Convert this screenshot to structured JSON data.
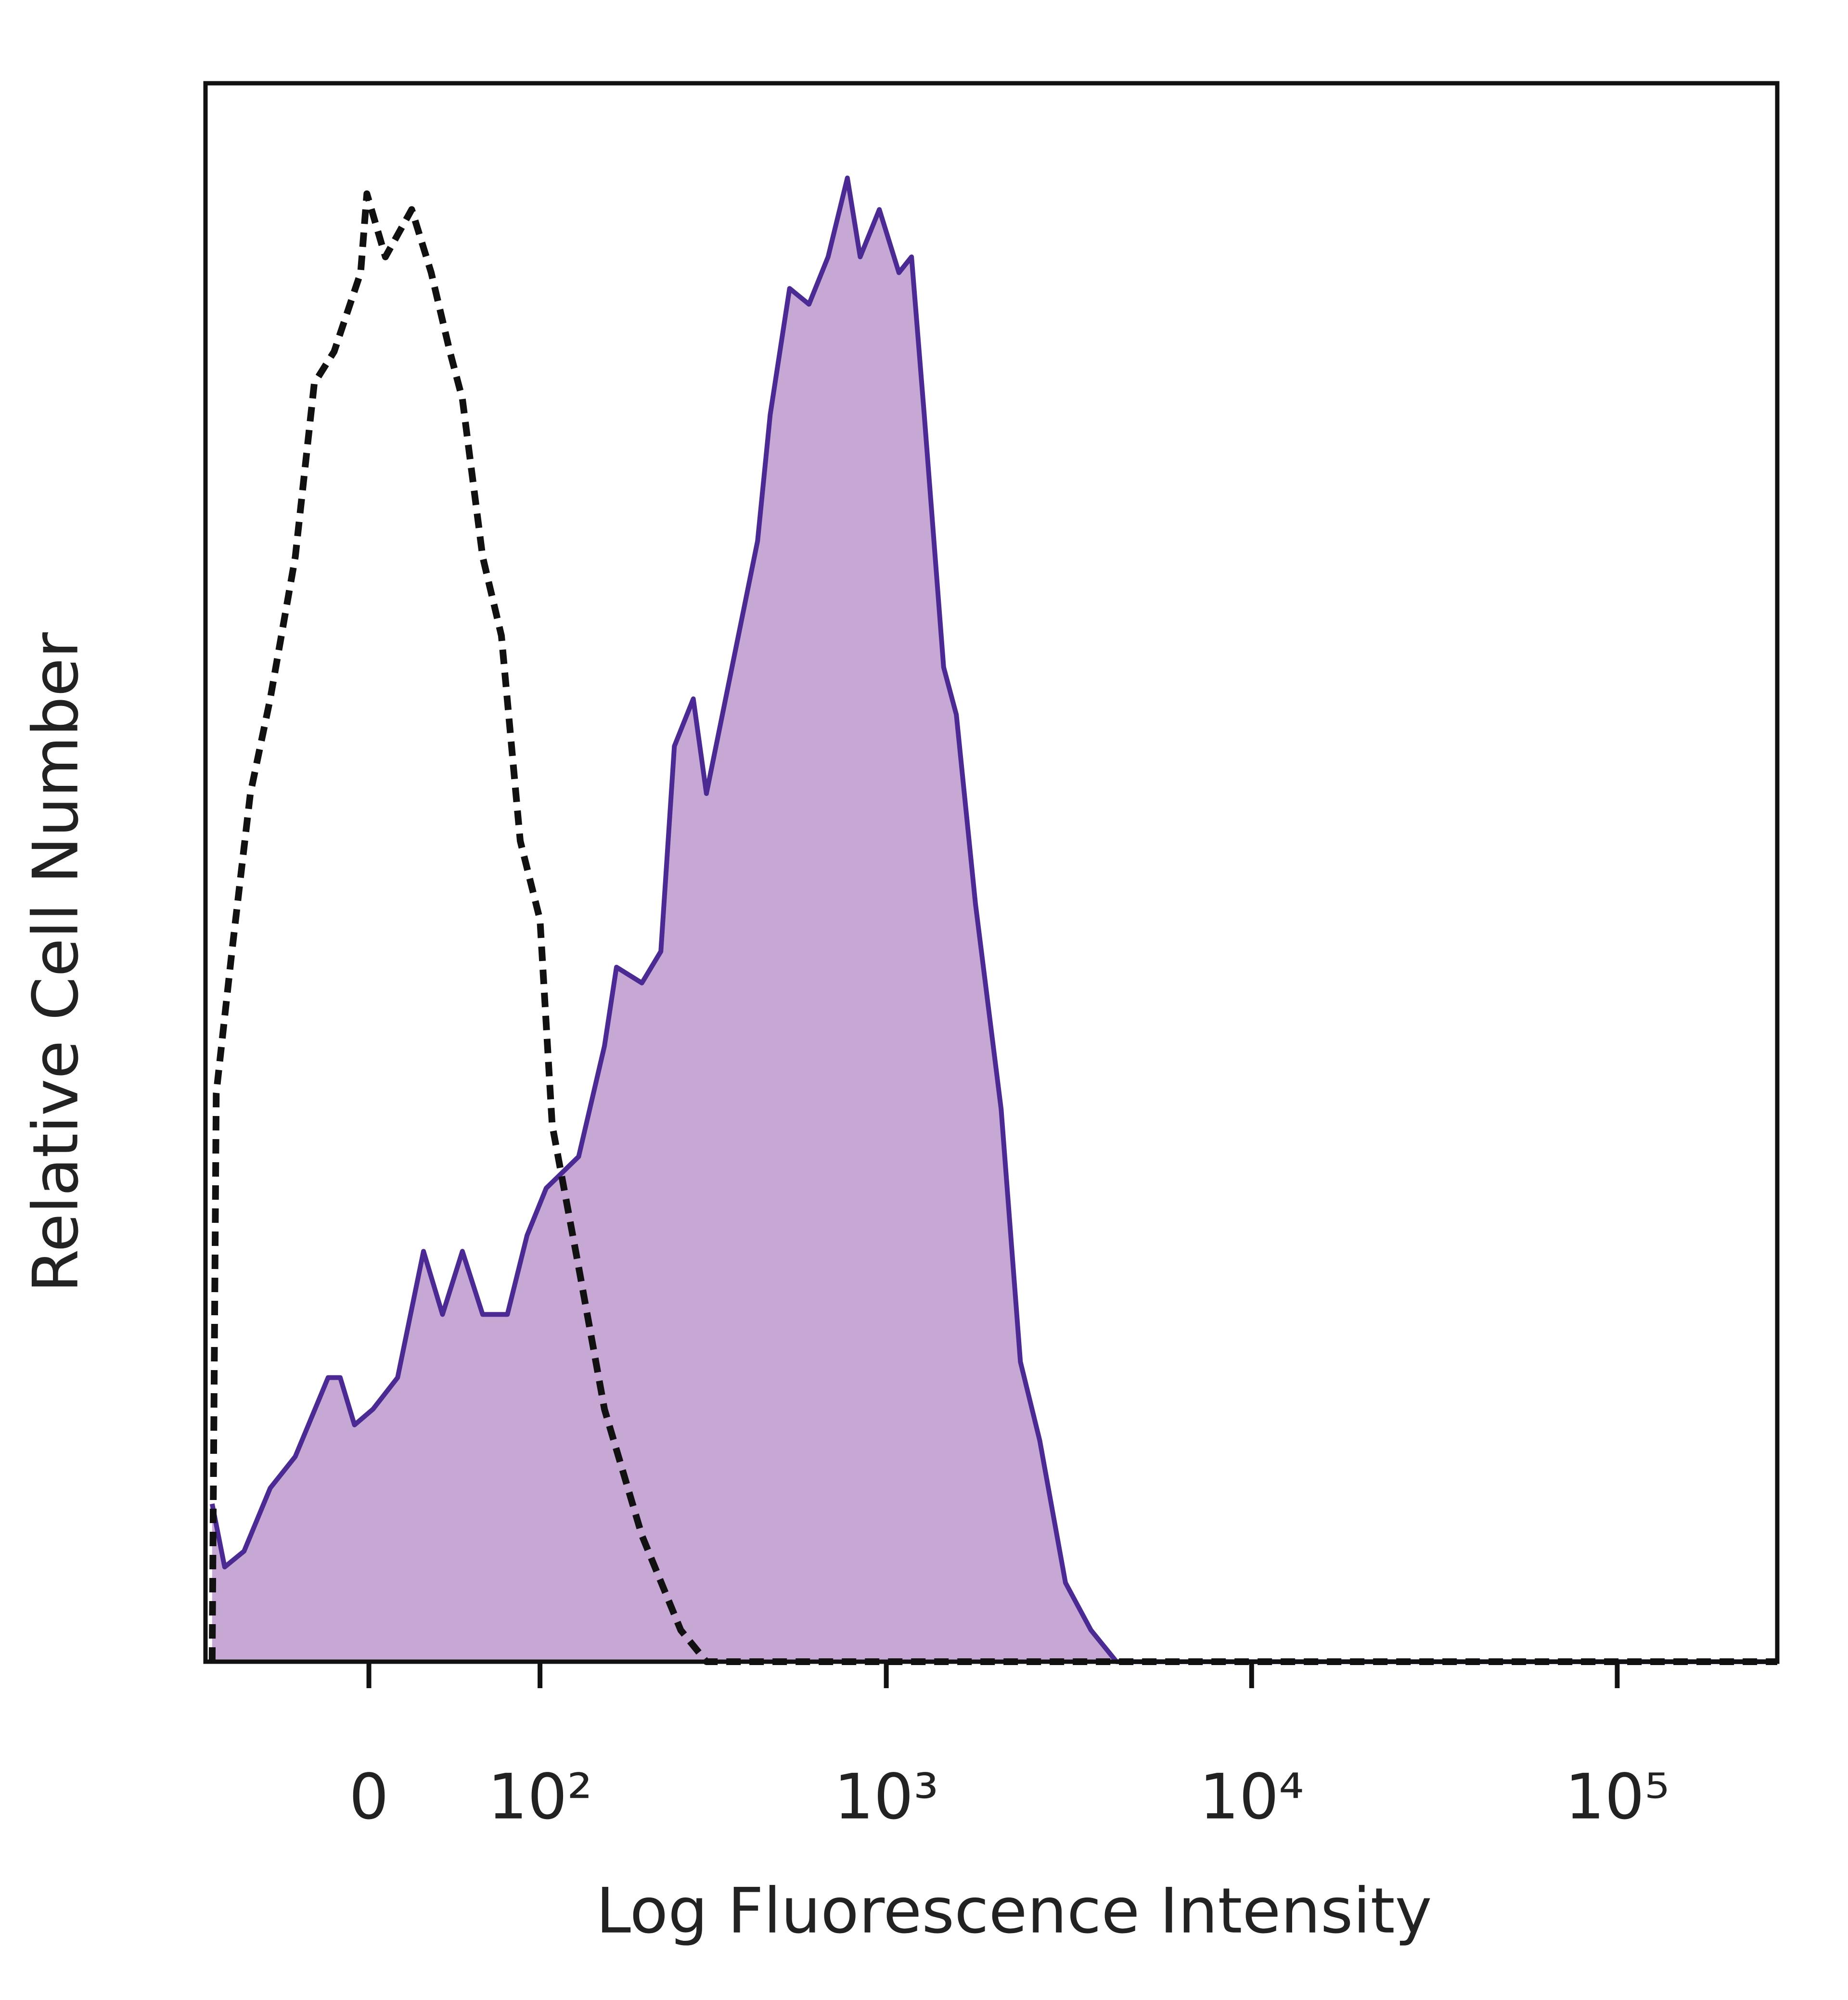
{
  "chart_data": {
    "type": "histogram-overlay",
    "x_label": "Log Fluorescence Intensity",
    "y_label": "Relative Cell Number",
    "xscale": "asinh",
    "xscale_linear_width": 77,
    "xlim": [
      -94,
      274000
    ],
    "ylim": [
      0,
      100
    ],
    "xticks": [
      0,
      {
        "value": 100,
        "label": "10²"
      },
      {
        "value": 1000,
        "label": "10³"
      },
      {
        "value": 10000,
        "label": "10⁴"
      },
      {
        "value": 100000,
        "label": "10⁵"
      }
    ],
    "series": [
      {
        "color": "#4b2a94",
        "fill": "#c7a8d4",
        "style": "solid",
        "x": [
          -89,
          -80,
          -67,
          -51,
          -37,
          -20,
          -14,
          -7,
          2,
          14,
          27,
          37,
          48,
          60,
          76,
          90,
          105,
          134,
          161,
          175,
          208,
          236,
          258,
          292,
          318,
          375,
          442,
          479,
          542,
          613,
          692,
          782,
          848,
          957,
          1083,
          1173,
          1271,
          1436,
          1556,
          1756,
          2064,
          2330,
          2633,
          3096,
          3634,
          4270,
          274000
        ],
        "values": [
          10,
          6,
          7,
          11,
          13,
          18,
          18,
          15,
          16,
          18,
          26,
          22,
          26,
          22,
          22,
          27,
          30,
          32,
          39,
          44,
          43,
          45,
          58,
          61,
          55,
          63,
          71,
          79,
          87,
          86,
          89,
          94,
          89,
          92,
          88,
          89,
          79,
          63,
          60,
          48,
          35,
          19,
          14,
          5,
          2,
          0,
          0
        ]
      },
      {
        "color": "#111111",
        "style": "dashed",
        "x": [
          -89,
          -86,
          -75,
          -63,
          -51,
          -37,
          -27,
          -17,
          -4,
          -1,
          8,
          21,
          31,
          41,
          48,
          60,
          72,
          85,
          100,
          110,
          134,
          161,
          208,
          269,
          318,
          274000
        ],
        "values": [
          0,
          36,
          45,
          55,
          61,
          70,
          81,
          83,
          88,
          93,
          89,
          92,
          88,
          83,
          80,
          70,
          65,
          52,
          47,
          34,
          25,
          16,
          8,
          2,
          0,
          0
        ]
      }
    ]
  }
}
